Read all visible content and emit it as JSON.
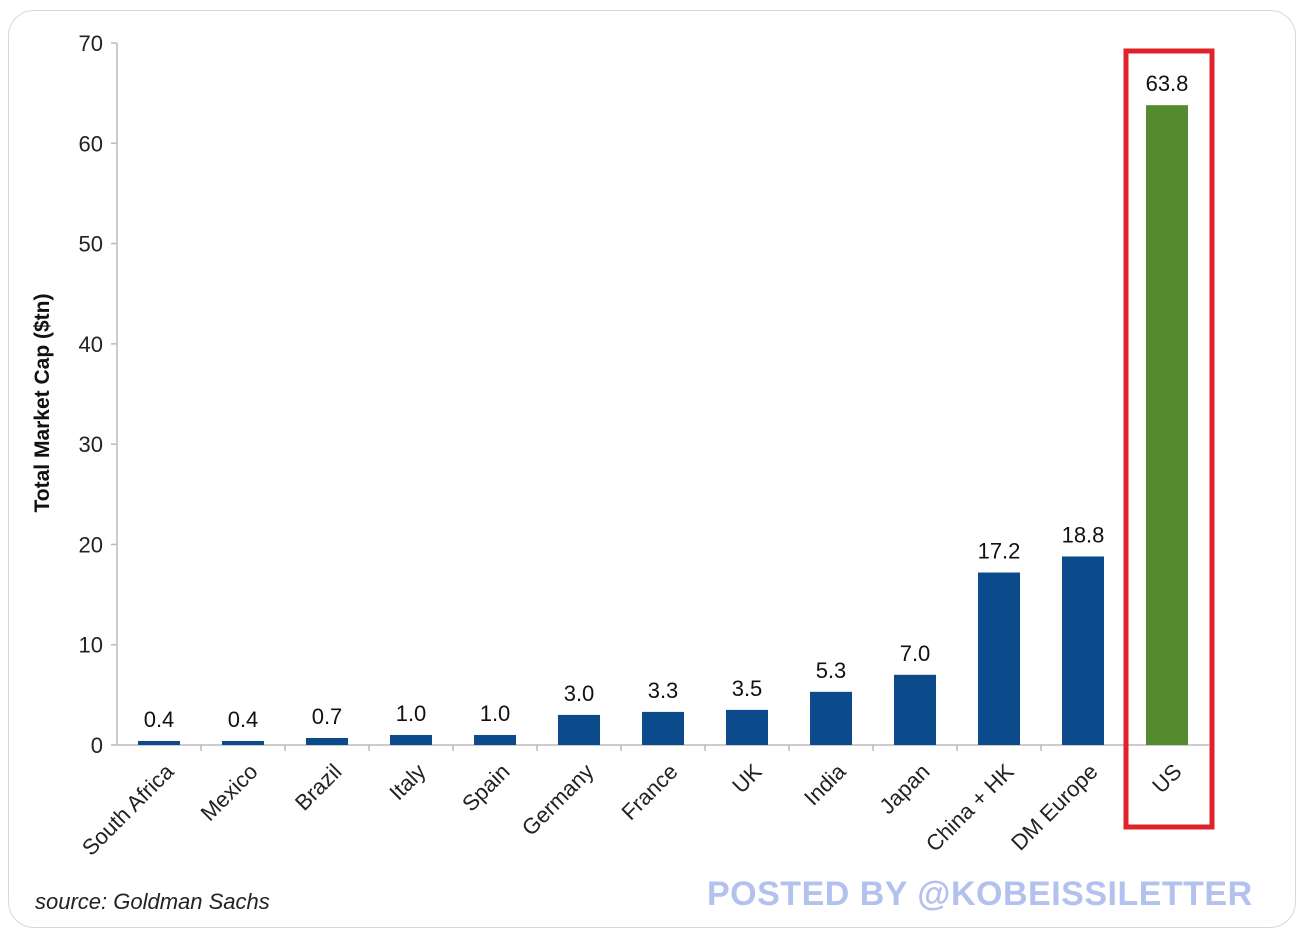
{
  "chart_data": {
    "type": "bar",
    "title": "",
    "xlabel": "",
    "ylabel": "Total Market Cap ($tn)",
    "ylim": [
      0,
      70
    ],
    "yticks": [
      0,
      10,
      20,
      30,
      40,
      50,
      60,
      70
    ],
    "grid": false,
    "categories": [
      "South Africa",
      "Mexico",
      "Brazil",
      "Italy",
      "Spain",
      "Germany",
      "France",
      "UK",
      "India",
      "Japan",
      "China + HK",
      "DM Europe",
      "US"
    ],
    "values": [
      0.4,
      0.4,
      0.7,
      1.0,
      1.0,
      3.0,
      3.3,
      3.5,
      5.3,
      7.0,
      17.2,
      18.8,
      63.8
    ],
    "value_labels": [
      "0.4",
      "0.4",
      "0.7",
      "1.0",
      "1.0",
      "3.0",
      "3.3",
      "3.5",
      "5.3",
      "7.0",
      "17.2",
      "18.8",
      "63.8"
    ],
    "colors": {
      "default_bar": "#0b4a8b",
      "highlight_bar": "#548b2e",
      "highlight_box": "#e0222b",
      "axis": "#bbbbbb"
    },
    "highlight_category": "US"
  },
  "footer": {
    "source": "source: Goldman Sachs",
    "watermark": "POSTED BY @KOBEISSILETTER"
  }
}
